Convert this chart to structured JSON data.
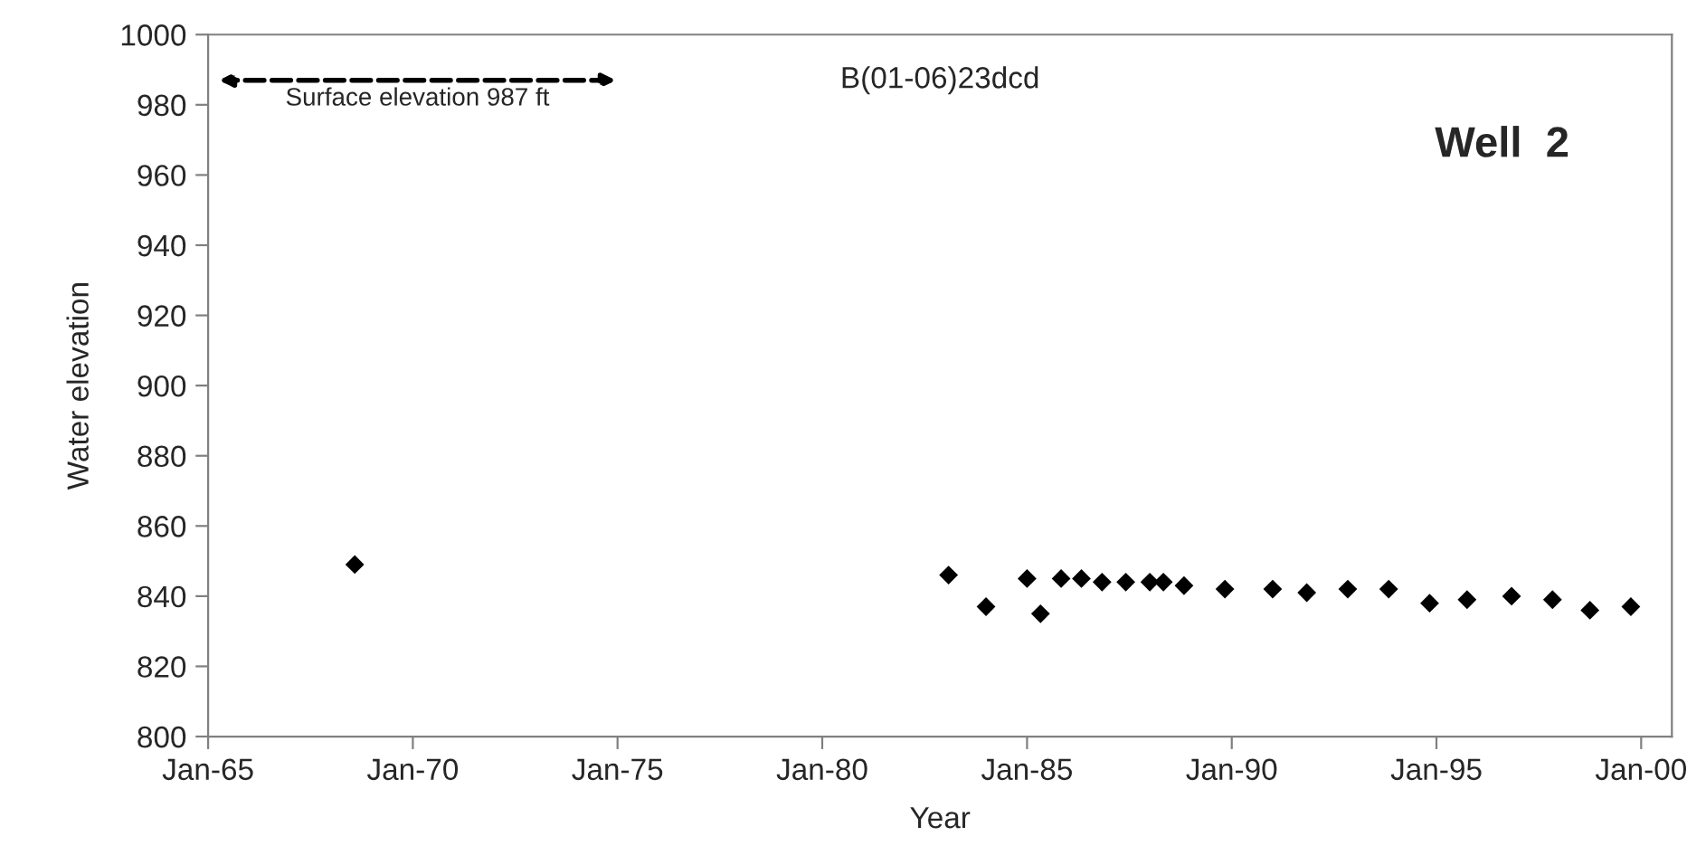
{
  "chart_data": {
    "type": "scatter",
    "title": "B(01-06)23dcd",
    "xlabel": "Year",
    "ylabel": "Water elevation",
    "annotations": [
      "Well  2",
      "Surface elevation 987 ft"
    ],
    "x": [
      "1968-08",
      "1983-02",
      "1984-01",
      "1985-01",
      "1985-05",
      "1985-11",
      "1986-05",
      "1986-11",
      "1987-06",
      "1988-01",
      "1988-05",
      "1988-11",
      "1989-11",
      "1991-01",
      "1991-11",
      "1992-11",
      "1993-11",
      "1994-11",
      "1995-10",
      "1996-11",
      "1997-11",
      "1998-10",
      "1999-10"
    ],
    "series": [
      {
        "color": "#000000",
        "values": [
          849,
          846,
          837,
          845,
          835,
          845,
          845,
          844,
          844,
          844,
          844,
          843,
          842,
          842,
          841,
          842,
          842,
          838,
          839,
          840,
          839,
          836,
          837
        ]
      }
    ],
    "marker": "diamond",
    "grid": false,
    "legend": false,
    "xlim": [
      "1965-01",
      "2000-10"
    ],
    "ylim": [
      800,
      1000
    ],
    "xticks": [
      {
        "value": "1965-01",
        "label": "Jan-65"
      },
      {
        "value": "1970-01",
        "label": "Jan-70"
      },
      {
        "value": "1975-01",
        "label": "Jan-75"
      },
      {
        "value": "1980-01",
        "label": "Jan-80"
      },
      {
        "value": "1985-01",
        "label": "Jan-85"
      },
      {
        "value": "1990-01",
        "label": "Jan-90"
      },
      {
        "value": "1995-01",
        "label": "Jan-95"
      },
      {
        "value": "2000-01",
        "label": "Jan-00"
      }
    ],
    "yticks": [
      800,
      820,
      840,
      860,
      880,
      900,
      920,
      940,
      960,
      980,
      1000
    ]
  }
}
